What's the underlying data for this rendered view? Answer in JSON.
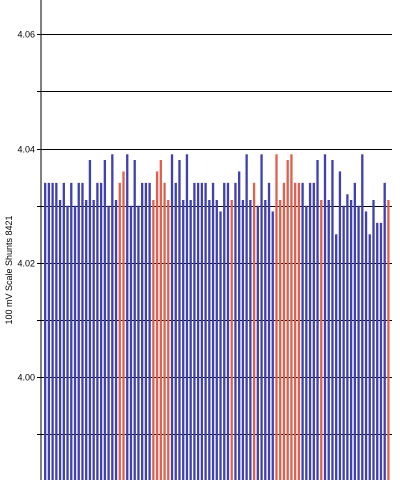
{
  "chart_data": {
    "type": "bar",
    "title": "",
    "xlabel": "",
    "ylabel": "100 mV Scale   Shunts 8421",
    "ylim": [
      3.982,
      4.066
    ],
    "yticks": [
      {
        "value": 4.06,
        "label": "4.06"
      },
      {
        "value": 4.05,
        "label": ""
      },
      {
        "value": 4.04,
        "label": "4.04"
      },
      {
        "value": 4.03,
        "label": ""
      },
      {
        "value": 4.02,
        "label": "4.02"
      },
      {
        "value": 4.01,
        "label": ""
      },
      {
        "value": 4.0,
        "label": "4.00"
      },
      {
        "value": 3.99,
        "label": ""
      }
    ],
    "grid": true,
    "colors": {
      "blue": "#4040b0",
      "red": "#e06050"
    },
    "values": [
      4.034,
      4.034,
      4.034,
      4.034,
      4.031,
      4.034,
      4.03,
      4.034,
      4.03,
      4.034,
      4.034,
      4.031,
      4.038,
      4.031,
      4.034,
      4.034,
      4.038,
      4.03,
      4.039,
      4.031,
      4.034,
      4.036,
      4.039,
      4.03,
      4.038,
      4.03,
      4.034,
      4.034,
      4.034,
      4.031,
      4.036,
      4.038,
      4.034,
      4.031,
      4.039,
      4.034,
      4.038,
      4.031,
      4.039,
      4.031,
      4.034,
      4.034,
      4.034,
      4.034,
      4.031,
      4.034,
      4.031,
      4.029,
      4.034,
      4.034,
      4.031,
      4.034,
      4.036,
      4.031,
      4.039,
      4.031,
      4.034,
      4.03,
      4.039,
      4.031,
      4.034,
      4.029,
      4.039,
      4.031,
      4.034,
      4.038,
      4.039,
      4.034,
      4.034,
      4.034,
      4.03,
      4.034,
      4.034,
      4.038,
      4.031,
      4.039,
      4.031,
      4.038,
      4.025,
      4.036,
      4.03,
      4.032,
      4.031,
      4.034,
      4.03,
      4.039,
      4.029,
      4.025,
      4.031,
      4.027,
      4.027,
      4.034,
      4.031
    ],
    "colorsIndex": [
      "b",
      "b",
      "b",
      "b",
      "b",
      "b",
      "b",
      "b",
      "b",
      "b",
      "b",
      "b",
      "b",
      "b",
      "b",
      "b",
      "b",
      "b",
      "b",
      "b",
      "r",
      "r",
      "b",
      "b",
      "b",
      "b",
      "b",
      "b",
      "b",
      "r",
      "r",
      "r",
      "r",
      "r",
      "b",
      "b",
      "b",
      "b",
      "b",
      "b",
      "b",
      "b",
      "b",
      "b",
      "b",
      "b",
      "b",
      "b",
      "b",
      "b",
      "r",
      "b",
      "b",
      "b",
      "b",
      "b",
      "r",
      "b",
      "b",
      "b",
      "b",
      "b",
      "r",
      "r",
      "r",
      "r",
      "r",
      "r",
      "r",
      "b",
      "b",
      "b",
      "b",
      "b",
      "r",
      "b",
      "b",
      "b",
      "b",
      "b",
      "b",
      "b",
      "b",
      "b",
      "b",
      "b",
      "b",
      "b",
      "b",
      "b",
      "b",
      "b",
      "r"
    ]
  }
}
